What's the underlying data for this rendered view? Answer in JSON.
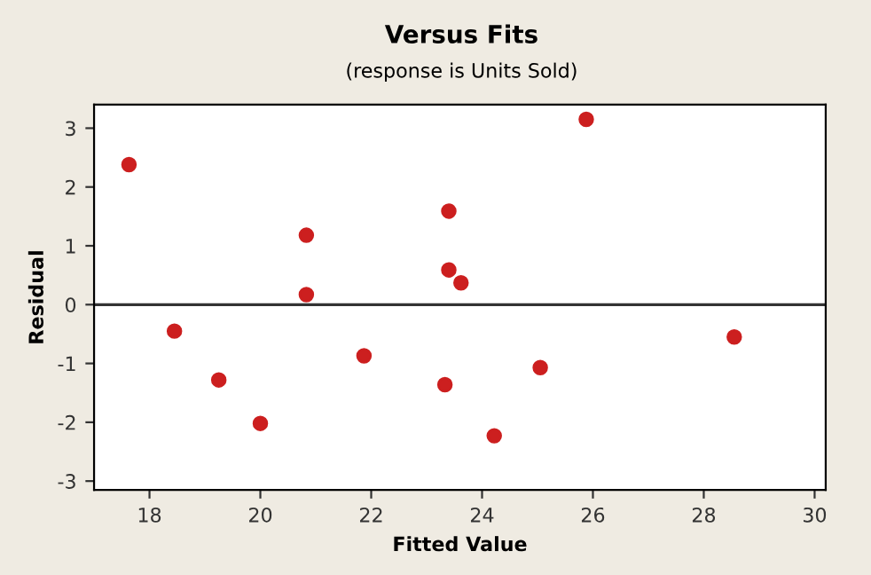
{
  "chart_data": {
    "type": "scatter",
    "title": "Versus Fits",
    "subtitle": "(response is Units Sold)",
    "xlabel": "Fitted Value",
    "ylabel": "Residual",
    "x": [
      17.63,
      18.45,
      19.25,
      20.0,
      20.83,
      20.83,
      21.87,
      23.33,
      23.4,
      23.4,
      23.62,
      24.22,
      25.05,
      25.88,
      28.55
    ],
    "series": [
      {
        "color": "#cc1f1f",
        "values": [
          2.38,
          -0.45,
          -1.28,
          -2.02,
          1.18,
          0.17,
          -0.87,
          -1.36,
          1.59,
          0.59,
          0.37,
          -2.23,
          -1.07,
          3.15,
          -0.55
        ]
      }
    ],
    "marker": "circle",
    "xlim": [
      17.0,
      30.2
    ],
    "ylim": [
      -3.15,
      3.4
    ],
    "xticks": [
      18,
      20,
      22,
      24,
      26,
      28,
      30
    ],
    "yticks": [
      -3,
      -2,
      -1,
      0,
      1,
      2,
      3
    ],
    "ref_lines": [
      {
        "axis": "y",
        "value": 0,
        "color": "#333333"
      }
    ],
    "grid": false,
    "legend": false
  }
}
